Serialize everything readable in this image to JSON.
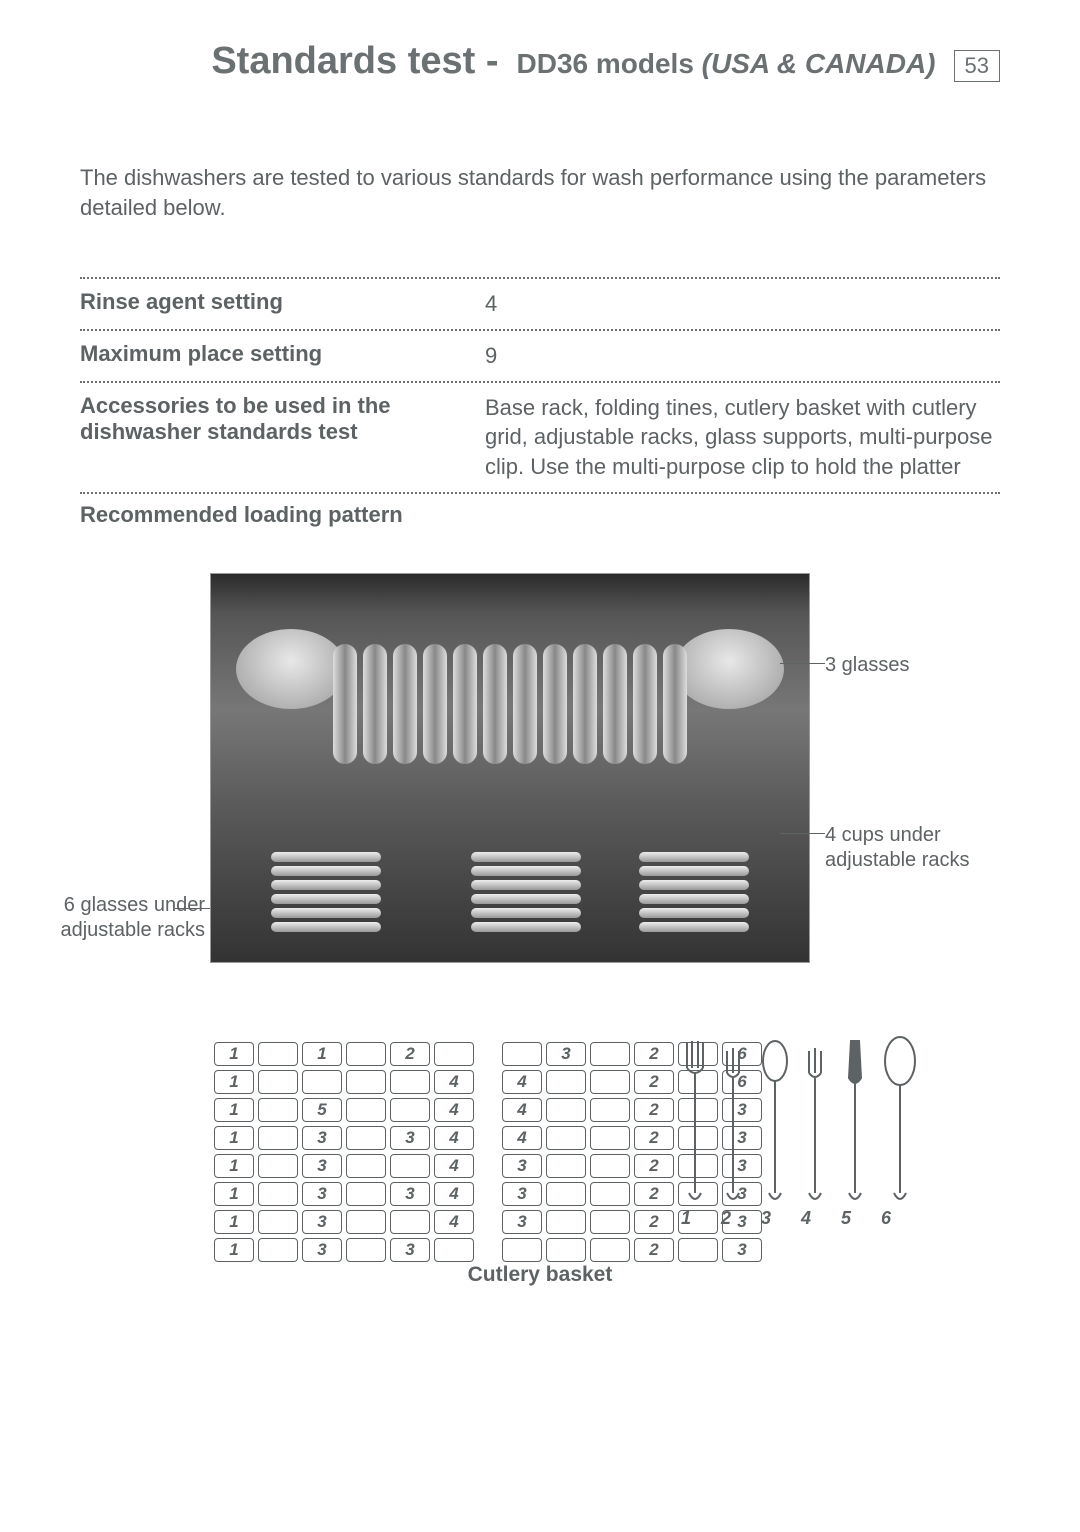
{
  "header": {
    "title_main": "Standards test - ",
    "title_sub_plain": "DD36 models ",
    "title_sub_italic": "(USA & CANADA)",
    "page_number": "53"
  },
  "intro": "The dishwashers are tested to various standards for wash performance using the parameters detailed below.",
  "specs": [
    {
      "label": "Rinse agent setting",
      "value": "4"
    },
    {
      "label": "Maximum place setting",
      "value": "9"
    },
    {
      "label": "Accessories to be used in the dishwasher standards test",
      "value": "Base rack, folding tines, cutlery basket with cutlery grid, adjustable racks, glass supports, multi-purpose clip. Use the multi-purpose clip to hold the platter"
    }
  ],
  "recommended_heading": "Recommended loading pattern",
  "callouts": {
    "right_top": "3 glasses",
    "right_bottom": "4 cups under adjustable racks",
    "left": "6 glasses under adjustable racks"
  },
  "cutlery": {
    "caption": "Cutlery basket",
    "grid_left": [
      [
        "1",
        "",
        "1",
        "",
        "2",
        ""
      ],
      [
        "1",
        "",
        "",
        "",
        "",
        "4"
      ],
      [
        "1",
        "",
        "5",
        "",
        "",
        "4"
      ],
      [
        "1",
        "",
        "3",
        "",
        "3",
        "4"
      ],
      [
        "1",
        "",
        "3",
        "",
        "",
        "4"
      ],
      [
        "1",
        "",
        "3",
        "",
        "3",
        "4"
      ],
      [
        "1",
        "",
        "3",
        "",
        "",
        "4"
      ],
      [
        "1",
        "",
        "3",
        "",
        "3",
        ""
      ]
    ],
    "grid_right": [
      [
        "",
        "3",
        "",
        "2",
        "",
        "6"
      ],
      [
        "4",
        "",
        "",
        "2",
        "",
        "6"
      ],
      [
        "4",
        "",
        "",
        "2",
        "",
        "3"
      ],
      [
        "4",
        "",
        "",
        "2",
        "",
        "3"
      ],
      [
        "3",
        "",
        "",
        "2",
        "",
        "3"
      ],
      [
        "3",
        "",
        "",
        "2",
        "",
        "3"
      ],
      [
        "3",
        "",
        "",
        "2",
        "",
        "3"
      ],
      [
        "",
        "",
        "",
        "2",
        "",
        "3"
      ]
    ],
    "utensil_numbers": [
      "1",
      "2",
      "3",
      "4",
      "5",
      "6"
    ]
  },
  "colors": {
    "text": "#5d6264",
    "border": "#6b7072",
    "background": "#ffffff"
  }
}
